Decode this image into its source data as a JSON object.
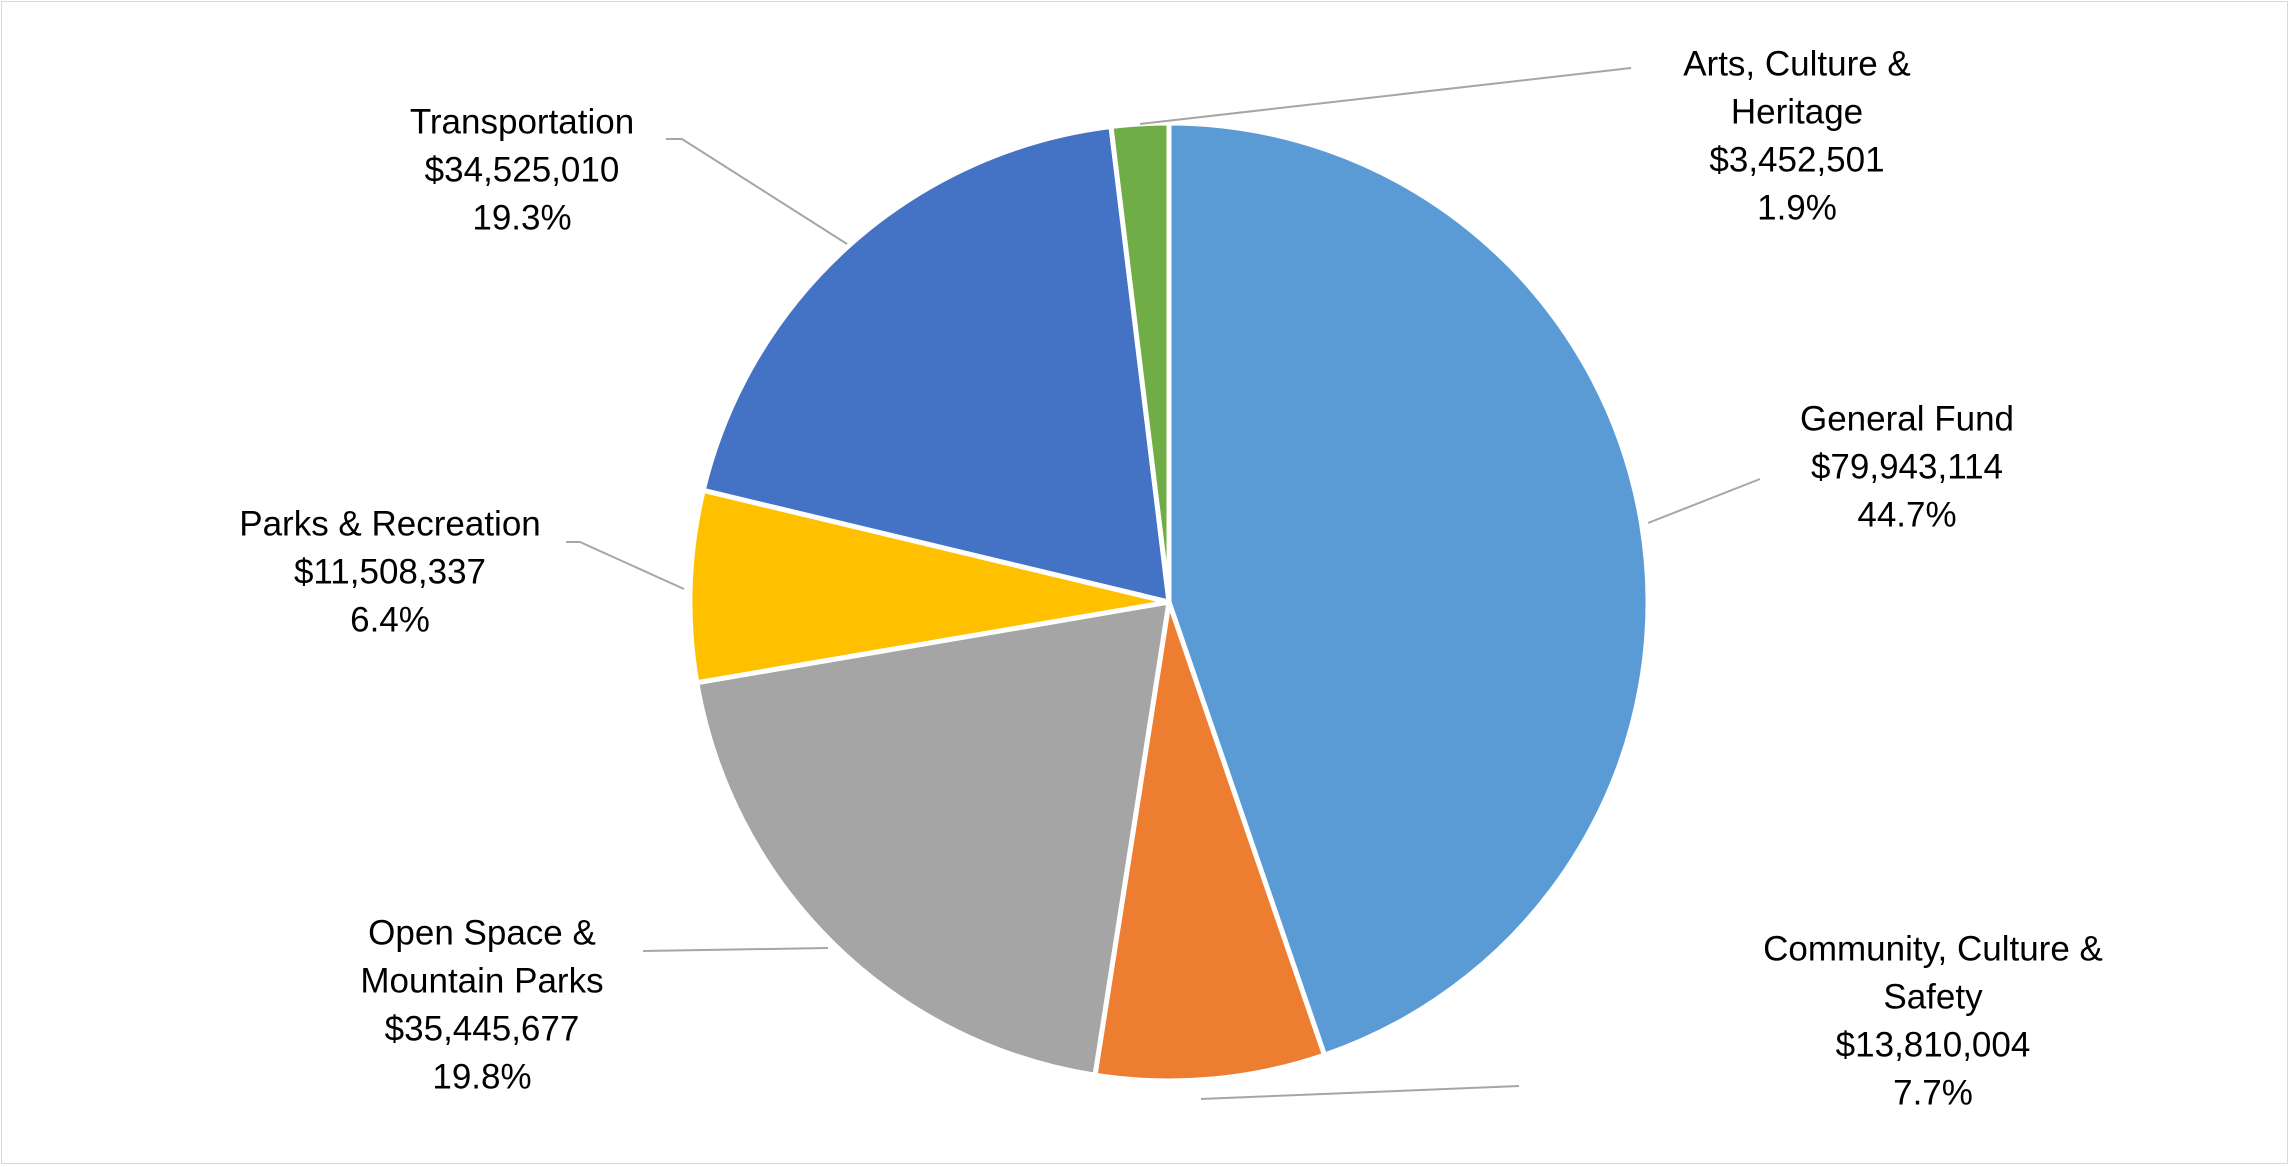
{
  "chart_data": {
    "type": "pie",
    "start_angle": "12 o'clock",
    "direction": "clockwise",
    "legend": "none",
    "slices": [
      {
        "label": [
          "General Fund"
        ],
        "value": 79943114,
        "value_label": "$79,943,114",
        "percent_label": "44.7%",
        "color": "#5B9BD5"
      },
      {
        "label": [
          "Community, Culture &",
          "Safety"
        ],
        "value": 13810004,
        "value_label": "$13,810,004",
        "percent_label": "7.7%",
        "color": "#ED7D31"
      },
      {
        "label": [
          "Open Space &",
          "Mountain Parks"
        ],
        "value": 35445677,
        "value_label": "$35,445,677",
        "percent_label": "19.8%",
        "color": "#A5A5A5"
      },
      {
        "label": [
          "Parks & Recreation"
        ],
        "value": 11508337,
        "value_label": "$11,508,337",
        "percent_label": "6.4%",
        "color": "#FFC000"
      },
      {
        "label": [
          "Transportation"
        ],
        "value": 34525010,
        "value_label": "$34,525,010",
        "percent_label": "19.3%",
        "color": "#4472C4"
      },
      {
        "label": [
          "Arts, Culture &",
          "Heritage"
        ],
        "value": 3452501,
        "value_label": "$3,452,501",
        "percent_label": "1.9%",
        "color": "#70AD47"
      }
    ]
  }
}
